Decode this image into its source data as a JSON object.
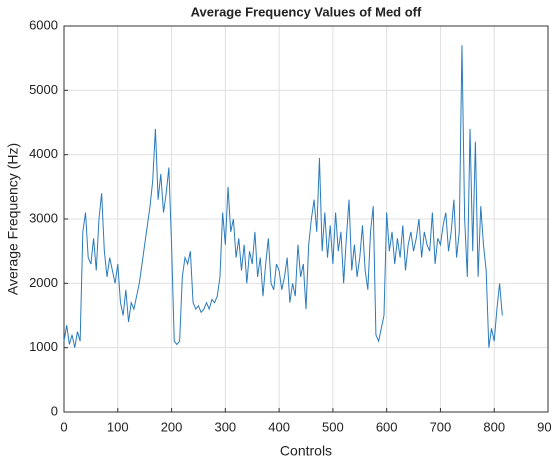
{
  "chart_data": {
    "type": "line",
    "title": "Average Frequency Values of Med off",
    "x_label": "Controls",
    "y_label": "Average Frequency (Hz)",
    "x": [
      0,
      5,
      10,
      15,
      20,
      25,
      30,
      35,
      40,
      45,
      50,
      55,
      60,
      65,
      70,
      75,
      80,
      85,
      90,
      95,
      100,
      105,
      110,
      115,
      120,
      125,
      130,
      135,
      140,
      145,
      150,
      155,
      160,
      165,
      170,
      175,
      180,
      185,
      190,
      195,
      200,
      205,
      210,
      215,
      220,
      225,
      230,
      235,
      240,
      245,
      250,
      255,
      260,
      265,
      270,
      275,
      280,
      285,
      290,
      295,
      300,
      305,
      310,
      315,
      320,
      325,
      330,
      335,
      340,
      345,
      350,
      355,
      360,
      365,
      370,
      375,
      380,
      385,
      390,
      395,
      400,
      405,
      410,
      415,
      420,
      425,
      430,
      435,
      440,
      445,
      450,
      455,
      460,
      465,
      470,
      475,
      480,
      485,
      490,
      495,
      500,
      505,
      510,
      515,
      520,
      525,
      530,
      535,
      540,
      545,
      550,
      555,
      560,
      565,
      570,
      575,
      580,
      585,
      590,
      595,
      600,
      605,
      610,
      615,
      620,
      625,
      630,
      635,
      640,
      645,
      650,
      655,
      660,
      665,
      670,
      675,
      680,
      685,
      690,
      695,
      700,
      705,
      710,
      715,
      720,
      725,
      730,
      735,
      740,
      745,
      750,
      755,
      760,
      765,
      770,
      775,
      780,
      785,
      790,
      795,
      800,
      805,
      810,
      815
    ],
    "series": [
      {
        "name": "Average Frequency",
        "color": "#2a7bbd",
        "values": [
          1100,
          1350,
          1050,
          1200,
          1000,
          1250,
          1100,
          2800,
          3100,
          2400,
          2300,
          2700,
          2200,
          3000,
          3400,
          2500,
          2100,
          2400,
          2200,
          2000,
          2300,
          1700,
          1500,
          1900,
          1400,
          1700,
          1600,
          1800,
          2000,
          2300,
          2600,
          2900,
          3200,
          3600,
          4400,
          3300,
          3700,
          3100,
          3400,
          3800,
          2600,
          1100,
          1050,
          1100,
          2100,
          2400,
          2300,
          2500,
          1700,
          1600,
          1650,
          1550,
          1600,
          1700,
          1600,
          1750,
          1700,
          1800,
          2100,
          3100,
          2600,
          3500,
          2800,
          3000,
          2400,
          2700,
          2200,
          2600,
          2000,
          2500,
          2300,
          2800,
          2100,
          2400,
          1800,
          2300,
          2700,
          2000,
          1900,
          2300,
          2200,
          1900,
          2100,
          2400,
          1700,
          2000,
          1800,
          2600,
          2100,
          2300,
          1600,
          2600,
          3000,
          3300,
          2800,
          3950,
          2500,
          3100,
          2400,
          2900,
          2300,
          3100,
          2500,
          2800,
          2000,
          2700,
          3300,
          2200,
          2600,
          2100,
          2400,
          2900,
          2200,
          1900,
          2800,
          3200,
          1200,
          1100,
          1300,
          1500,
          3100,
          2500,
          2800,
          2300,
          2700,
          2400,
          2900,
          2200,
          2600,
          2800,
          2500,
          2700,
          3000,
          2400,
          2800,
          2600,
          2500,
          3100,
          2300,
          2700,
          2600,
          2900,
          3100,
          2500,
          2800,
          3300,
          2400,
          2800,
          5700,
          3000,
          2100,
          4400,
          2500,
          4200,
          2100,
          3200,
          2600,
          2200,
          1000,
          1300,
          1100,
          1600,
          2000,
          1500
        ]
      }
    ],
    "xlim": [
      0,
      900
    ],
    "xticks": [
      0,
      100,
      200,
      300,
      400,
      500,
      600,
      700,
      800,
      900
    ],
    "ylim": [
      0,
      6000
    ],
    "yticks": [
      0,
      1000,
      2000,
      3000,
      4000,
      5000,
      6000
    ],
    "grid": true
  }
}
